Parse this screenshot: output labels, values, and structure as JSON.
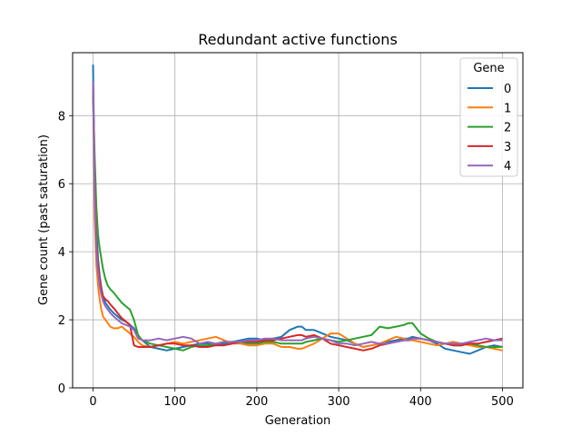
{
  "chart_data": {
    "type": "line",
    "title": "Redundant active functions",
    "xlabel": "Generation",
    "ylabel": "Gene count (past saturation)",
    "xlim": [
      -25,
      525
    ],
    "ylim": [
      0,
      9.85
    ],
    "xticks": [
      "0",
      "100",
      "200",
      "300",
      "400",
      "500"
    ],
    "yticks": [
      "0",
      "2",
      "4",
      "6",
      "8"
    ],
    "grid": true,
    "legend": {
      "title": "Gene",
      "placement": "top-right"
    },
    "x": [
      0,
      2,
      4,
      6,
      8,
      10,
      12,
      15,
      18,
      21,
      25,
      30,
      35,
      40,
      45,
      50,
      55,
      60,
      70,
      80,
      90,
      100,
      110,
      120,
      130,
      140,
      150,
      160,
      170,
      180,
      190,
      200,
      210,
      220,
      230,
      240,
      250,
      255,
      260,
      270,
      280,
      290,
      300,
      310,
      320,
      330,
      340,
      350,
      360,
      370,
      380,
      385,
      390,
      400,
      410,
      420,
      430,
      440,
      450,
      460,
      470,
      480,
      490,
      500
    ],
    "series": [
      {
        "name": "0",
        "color": "#1f77b4",
        "values": [
          9.5,
          6.0,
          4.6,
          3.8,
          3.3,
          2.95,
          2.7,
          2.5,
          2.4,
          2.3,
          2.2,
          2.1,
          2.0,
          1.95,
          1.85,
          1.75,
          1.5,
          1.4,
          1.2,
          1.15,
          1.1,
          1.15,
          1.2,
          1.25,
          1.3,
          1.3,
          1.25,
          1.3,
          1.35,
          1.4,
          1.45,
          1.45,
          1.4,
          1.45,
          1.5,
          1.7,
          1.8,
          1.8,
          1.7,
          1.7,
          1.6,
          1.5,
          1.45,
          1.4,
          1.3,
          1.2,
          1.25,
          1.3,
          1.35,
          1.4,
          1.45,
          1.45,
          1.5,
          1.45,
          1.4,
          1.3,
          1.15,
          1.1,
          1.05,
          1.0,
          1.1,
          1.2,
          1.25,
          1.2
        ]
      },
      {
        "name": "1",
        "color": "#ff7f0e",
        "values": [
          8.9,
          5.0,
          3.6,
          3.0,
          2.6,
          2.3,
          2.1,
          2.0,
          1.9,
          1.8,
          1.75,
          1.75,
          1.8,
          1.7,
          1.6,
          1.5,
          1.35,
          1.25,
          1.2,
          1.25,
          1.3,
          1.35,
          1.3,
          1.35,
          1.4,
          1.45,
          1.5,
          1.4,
          1.3,
          1.3,
          1.25,
          1.25,
          1.3,
          1.3,
          1.2,
          1.2,
          1.15,
          1.15,
          1.2,
          1.3,
          1.45,
          1.6,
          1.6,
          1.45,
          1.3,
          1.2,
          1.25,
          1.3,
          1.4,
          1.5,
          1.45,
          1.4,
          1.4,
          1.35,
          1.3,
          1.25,
          1.3,
          1.35,
          1.3,
          1.25,
          1.2,
          1.2,
          1.15,
          1.1
        ]
      },
      {
        "name": "2",
        "color": "#2ca02c",
        "values": [
          8.6,
          6.8,
          5.3,
          4.5,
          4.1,
          3.8,
          3.5,
          3.2,
          3.0,
          2.9,
          2.8,
          2.65,
          2.5,
          2.4,
          2.3,
          2.0,
          1.55,
          1.4,
          1.3,
          1.25,
          1.2,
          1.15,
          1.1,
          1.2,
          1.25,
          1.25,
          1.3,
          1.35,
          1.35,
          1.35,
          1.3,
          1.3,
          1.35,
          1.35,
          1.3,
          1.3,
          1.3,
          1.3,
          1.35,
          1.4,
          1.45,
          1.4,
          1.35,
          1.4,
          1.45,
          1.5,
          1.55,
          1.8,
          1.75,
          1.8,
          1.85,
          1.9,
          1.9,
          1.6,
          1.45,
          1.35,
          1.3,
          1.25,
          1.25,
          1.3,
          1.25,
          1.2,
          1.2,
          1.2
        ]
      },
      {
        "name": "3",
        "color": "#d62728",
        "values": [
          8.8,
          5.9,
          4.3,
          3.6,
          3.2,
          2.9,
          2.7,
          2.6,
          2.55,
          2.45,
          2.35,
          2.2,
          2.05,
          1.95,
          1.85,
          1.25,
          1.2,
          1.2,
          1.2,
          1.25,
          1.3,
          1.3,
          1.25,
          1.25,
          1.2,
          1.2,
          1.25,
          1.25,
          1.3,
          1.35,
          1.35,
          1.35,
          1.4,
          1.4,
          1.45,
          1.5,
          1.55,
          1.55,
          1.5,
          1.55,
          1.45,
          1.3,
          1.25,
          1.2,
          1.15,
          1.1,
          1.15,
          1.25,
          1.3,
          1.35,
          1.4,
          1.4,
          1.45,
          1.45,
          1.4,
          1.35,
          1.3,
          1.25,
          1.25,
          1.3,
          1.3,
          1.35,
          1.4,
          1.45
        ]
      },
      {
        "name": "4",
        "color": "#9467bd",
        "values": [
          9.0,
          5.7,
          4.0,
          3.4,
          3.0,
          2.75,
          2.55,
          2.4,
          2.3,
          2.2,
          2.1,
          2.0,
          1.9,
          1.85,
          1.8,
          1.7,
          1.45,
          1.4,
          1.4,
          1.45,
          1.4,
          1.45,
          1.5,
          1.45,
          1.3,
          1.35,
          1.3,
          1.35,
          1.35,
          1.35,
          1.4,
          1.4,
          1.45,
          1.45,
          1.4,
          1.4,
          1.4,
          1.4,
          1.45,
          1.5,
          1.45,
          1.4,
          1.3,
          1.3,
          1.25,
          1.3,
          1.35,
          1.3,
          1.3,
          1.35,
          1.4,
          1.4,
          1.45,
          1.45,
          1.4,
          1.35,
          1.3,
          1.3,
          1.3,
          1.35,
          1.4,
          1.45,
          1.4,
          1.4
        ]
      }
    ]
  }
}
